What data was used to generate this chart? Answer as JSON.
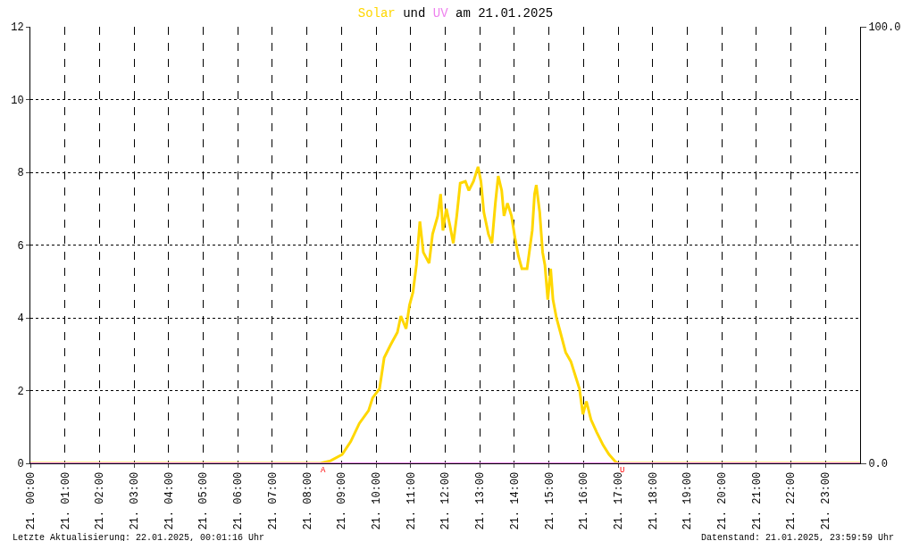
{
  "chart_data": {
    "type": "line",
    "title": "Solar und UV am 21.01.2025",
    "xlim": [
      "2025-01-21T00:00",
      "2025-01-22T00:00"
    ],
    "xticks": [
      {
        "value": "2025-01-21T00:00",
        "label": "21. 00:00"
      },
      {
        "value": "2025-01-21T01:00",
        "label": "21. 01:00"
      },
      {
        "value": "2025-01-21T02:00",
        "label": "21. 02:00"
      },
      {
        "value": "2025-01-21T03:00",
        "label": "21. 03:00"
      },
      {
        "value": "2025-01-21T04:00",
        "label": "21. 04:00"
      },
      {
        "value": "2025-01-21T05:00",
        "label": "21. 05:00"
      },
      {
        "value": "2025-01-21T06:00",
        "label": "21. 06:00"
      },
      {
        "value": "2025-01-21T07:00",
        "label": "21. 07:00"
      },
      {
        "value": "2025-01-21T08:00",
        "label": "21. 08:00"
      },
      {
        "value": "2025-01-21T09:00",
        "label": "21. 09:00"
      },
      {
        "value": "2025-01-21T10:00",
        "label": "21. 10:00"
      },
      {
        "value": "2025-01-21T11:00",
        "label": "21. 11:00"
      },
      {
        "value": "2025-01-21T12:00",
        "label": "21. 12:00"
      },
      {
        "value": "2025-01-21T13:00",
        "label": "21. 13:00"
      },
      {
        "value": "2025-01-21T14:00",
        "label": "21. 14:00"
      },
      {
        "value": "2025-01-21T15:00",
        "label": "21. 15:00"
      },
      {
        "value": "2025-01-21T16:00",
        "label": "21. 16:00"
      },
      {
        "value": "2025-01-21T17:00",
        "label": "21. 17:00"
      },
      {
        "value": "2025-01-21T18:00",
        "label": "21. 18:00"
      },
      {
        "value": "2025-01-21T19:00",
        "label": "21. 19:00"
      },
      {
        "value": "2025-01-21T20:00",
        "label": "21. 20:00"
      },
      {
        "value": "2025-01-21T21:00",
        "label": "21. 21:00"
      },
      {
        "value": "2025-01-21T22:00",
        "label": "21. 22:00"
      },
      {
        "value": "2025-01-21T23:00",
        "label": "21. 23:00"
      }
    ],
    "ylim": [
      0,
      12
    ],
    "yticks": [
      0,
      2,
      4,
      6,
      8,
      10,
      12
    ],
    "y2lim": [
      0,
      100
    ],
    "y2ticks": [
      {
        "value": 0,
        "label": "0.0"
      },
      {
        "value": 100,
        "label": "100.0"
      }
    ],
    "grid": true,
    "marker": "none",
    "series": [
      {
        "color": "#ffd700",
        "x": [
          "2025-01-21T00:00",
          "2025-01-21T08:23",
          "2025-01-21T08:41",
          "2025-01-21T09:01",
          "2025-01-21T09:16",
          "2025-01-21T09:31",
          "2025-01-21T09:47",
          "2025-01-21T09:54",
          "2025-01-21T10:06",
          "2025-01-21T10:14",
          "2025-01-21T10:25",
          "2025-01-21T10:37",
          "2025-01-21T10:43",
          "2025-01-21T10:52",
          "2025-01-21T10:58",
          "2025-01-21T11:04",
          "2025-01-21T11:10",
          "2025-01-21T11:16",
          "2025-01-21T11:22",
          "2025-01-21T11:32",
          "2025-01-21T11:38",
          "2025-01-21T11:47",
          "2025-01-21T11:52",
          "2025-01-21T11:56",
          "2025-01-21T12:02",
          "2025-01-21T12:08",
          "2025-01-21T12:14",
          "2025-01-21T12:20",
          "2025-01-21T12:26",
          "2025-01-21T12:35",
          "2025-01-21T12:41",
          "2025-01-21T12:49",
          "2025-01-21T12:57",
          "2025-01-21T13:02",
          "2025-01-21T13:07",
          "2025-01-21T13:15",
          "2025-01-21T13:21",
          "2025-01-21T13:27",
          "2025-01-21T13:32",
          "2025-01-21T13:38",
          "2025-01-21T13:42",
          "2025-01-21T13:48",
          "2025-01-21T13:55",
          "2025-01-21T14:01",
          "2025-01-21T14:07",
          "2025-01-21T14:13",
          "2025-01-21T14:22",
          "2025-01-21T14:31",
          "2025-01-21T14:35",
          "2025-01-21T14:38",
          "2025-01-21T14:44",
          "2025-01-21T14:49",
          "2025-01-21T14:53",
          "2025-01-21T14:58",
          "2025-01-21T15:03",
          "2025-01-21T15:07",
          "2025-01-21T15:13",
          "2025-01-21T15:19",
          "2025-01-21T15:29",
          "2025-01-21T15:38",
          "2025-01-21T15:46",
          "2025-01-21T15:53",
          "2025-01-21T15:59",
          "2025-01-21T16:05",
          "2025-01-21T16:13",
          "2025-01-21T16:23",
          "2025-01-21T16:34",
          "2025-01-21T16:44",
          "2025-01-21T16:55",
          "2025-01-21T17:00",
          "2025-01-22T00:00"
        ],
        "values": [
          0,
          0,
          0.07,
          0.24,
          0.6,
          1.1,
          1.45,
          1.8,
          2.05,
          2.9,
          3.25,
          3.6,
          4.05,
          3.7,
          4.35,
          4.7,
          5.45,
          6.65,
          5.8,
          5.5,
          6.3,
          6.8,
          7.4,
          6.4,
          7.0,
          6.55,
          6.05,
          6.8,
          7.7,
          7.75,
          7.5,
          7.75,
          8.15,
          7.75,
          6.9,
          6.3,
          6.05,
          7.15,
          7.9,
          7.5,
          6.8,
          7.15,
          6.8,
          6.2,
          5.7,
          5.35,
          5.35,
          6.4,
          7.4,
          7.65,
          6.9,
          5.8,
          5.45,
          4.5,
          5.35,
          4.5,
          4.0,
          3.65,
          3.05,
          2.8,
          2.4,
          2.05,
          1.35,
          1.7,
          1.2,
          0.85,
          0.5,
          0.25,
          0.05,
          0,
          0
        ]
      },
      {
        "color": "#ee82ee",
        "axis": "y2",
        "x": [
          "2025-01-21T00:00",
          "2025-01-22T00:00"
        ],
        "values": [
          0,
          0
        ]
      }
    ],
    "annotations": [
      {
        "text": "A",
        "x": "2025-01-21T08:28",
        "y": 0
      },
      {
        "text": "U",
        "x": "2025-01-21T17:07",
        "y": 0
      },
      "Letzte Aktualisierung: 22.01.2025, 00:01:16 Uhr",
      "Datenstand: 21.01.2025, 23:59:59 Uhr"
    ]
  }
}
